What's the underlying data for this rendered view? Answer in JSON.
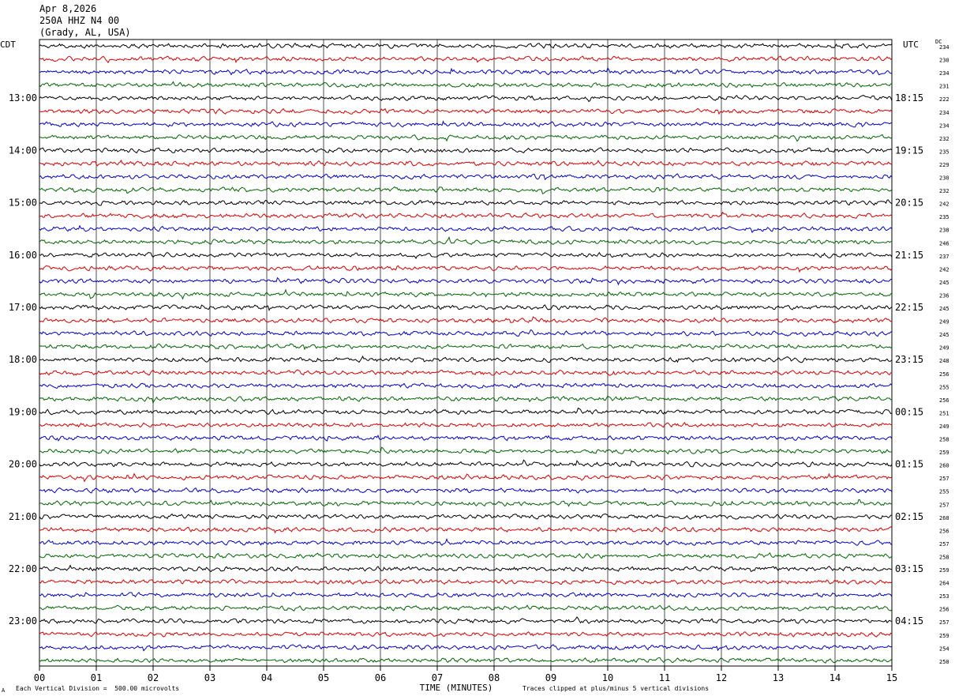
{
  "header": {
    "date": "Apr 8,2026",
    "station": "250A HHZ N4 00",
    "location": "(Grady, AL, USA)"
  },
  "left_tz": "CDT",
  "right_tz": "UTC",
  "dc_label": "DC",
  "footer": {
    "scale": "Each Vertical Division =  500.00 microvolts",
    "clip": "Traces clipped at plus/minus 5 vertical divisions",
    "corner_mark": "A"
  },
  "chart_data": {
    "type": "line",
    "title": "",
    "xlabel": "TIME (MINUTES)",
    "xlim": [
      0,
      15
    ],
    "x_ticks": [
      "00",
      "01",
      "02",
      "03",
      "04",
      "05",
      "06",
      "07",
      "08",
      "09",
      "10",
      "11",
      "12",
      "13",
      "14",
      "15"
    ],
    "trace_colors": [
      "#000000",
      "#dd0000",
      "#0000cc",
      "#006600"
    ],
    "rows_per_hour": 4,
    "trace_count": 48,
    "left_hour_labels": [
      "13:00",
      "14:00",
      "15:00",
      "16:00",
      "17:00",
      "18:00",
      "19:00",
      "20:00",
      "21:00",
      "22:00",
      "23:00"
    ],
    "right_hour_labels": [
      "18:15",
      "19:15",
      "20:15",
      "21:15",
      "22:15",
      "23:15",
      "00:15",
      "01:15",
      "02:15",
      "03:15",
      "04:15"
    ],
    "dc_offsets": [
      234,
      230,
      234,
      231,
      222,
      234,
      234,
      232,
      235,
      229,
      230,
      232,
      242,
      235,
      238,
      246,
      237,
      242,
      245,
      236,
      245,
      249,
      245,
      249,
      248,
      256,
      255,
      256,
      251,
      249,
      258,
      259,
      260,
      257,
      255,
      257,
      260,
      256,
      257,
      258,
      259,
      264,
      253,
      256,
      257,
      259,
      254,
      250
    ]
  }
}
